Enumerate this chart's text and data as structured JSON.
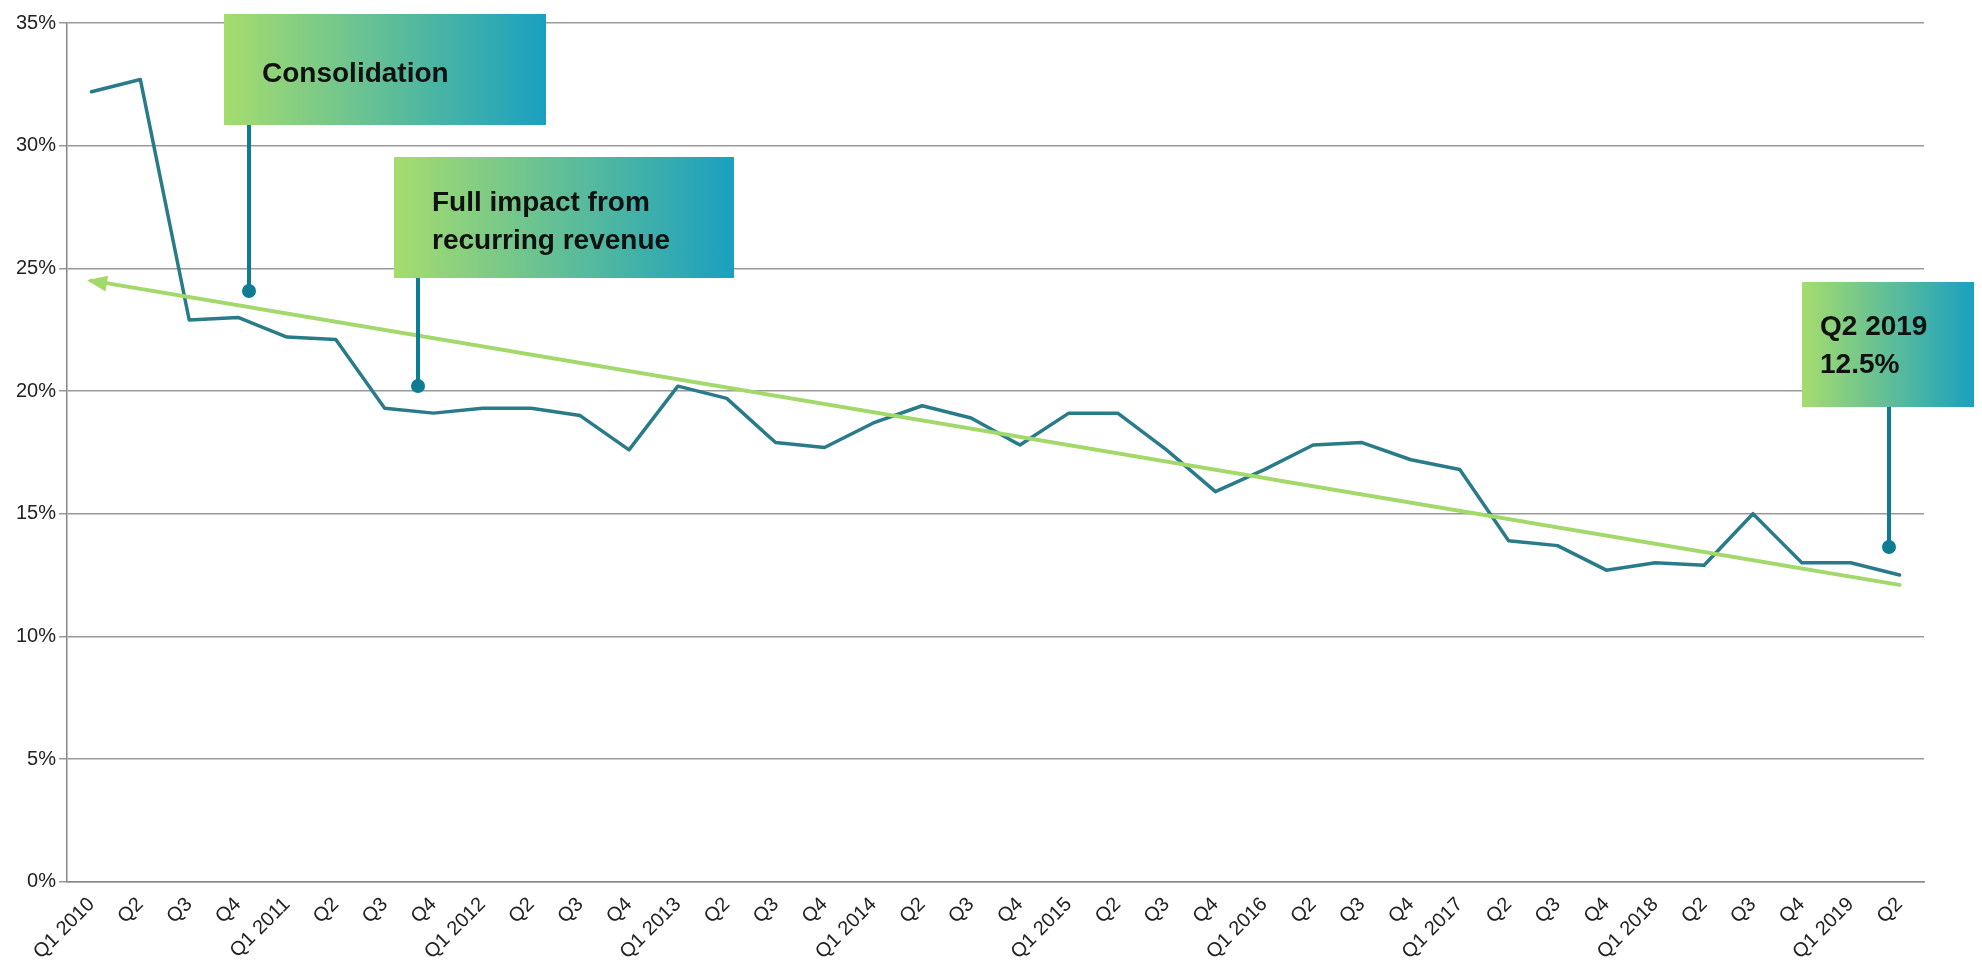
{
  "chart_data": {
    "type": "line",
    "categories": [
      "Q1 2010",
      "Q2",
      "Q3",
      "Q4",
      "Q1 2011",
      "Q2",
      "Q3",
      "Q4",
      "Q1 2012",
      "Q2",
      "Q3",
      "Q4",
      "Q1 2013",
      "Q2",
      "Q3",
      "Q4",
      "Q1 2014",
      "Q2",
      "Q3",
      "Q4",
      "Q1 2015",
      "Q2",
      "Q3",
      "Q4",
      "Q1 2016",
      "Q2",
      "Q3",
      "Q4",
      "Q1 2017",
      "Q2",
      "Q3",
      "Q4",
      "Q1 2018",
      "Q2",
      "Q3",
      "Q4",
      "Q1 2019",
      "Q2"
    ],
    "series": [
      {
        "color": "#2a7b8a",
        "values": [
          32.2,
          32.7,
          22.9,
          23.0,
          22.2,
          22.1,
          19.3,
          19.1,
          19.3,
          19.3,
          19.0,
          17.6,
          20.2,
          19.7,
          17.9,
          17.7,
          18.7,
          19.4,
          18.9,
          17.8,
          19.1,
          19.1,
          17.6,
          15.9,
          16.8,
          17.8,
          17.9,
          17.2,
          16.8,
          13.9,
          13.7,
          12.7,
          13.0,
          12.9,
          15.0,
          13.0,
          13.0,
          12.5
        ]
      },
      {
        "type": "line",
        "color": "#a3d86b",
        "values": [
          24.5,
          null,
          null,
          null,
          null,
          null,
          null,
          null,
          null,
          null,
          null,
          null,
          null,
          null,
          null,
          null,
          null,
          null,
          null,
          null,
          null,
          null,
          null,
          null,
          null,
          null,
          null,
          null,
          null,
          null,
          null,
          null,
          null,
          null,
          null,
          null,
          null,
          12.1
        ]
      }
    ],
    "ylim": [
      0,
      35
    ],
    "yticks": [
      {
        "value": 0,
        "label": "0%"
      },
      {
        "value": 5,
        "label": "5%"
      },
      {
        "value": 10,
        "label": "10%"
      },
      {
        "value": 15,
        "label": "15%"
      },
      {
        "value": 20,
        "label": "20%"
      },
      {
        "value": 25,
        "label": "25%"
      },
      {
        "value": 30,
        "label": "30%"
      },
      {
        "value": 35,
        "label": "35%"
      }
    ],
    "grid": "y",
    "legend": false,
    "line_style": "solid",
    "annotations": [
      "Consolidation",
      "Full impact from recurring revenue",
      "Q2 2019 12.5%"
    ]
  }
}
